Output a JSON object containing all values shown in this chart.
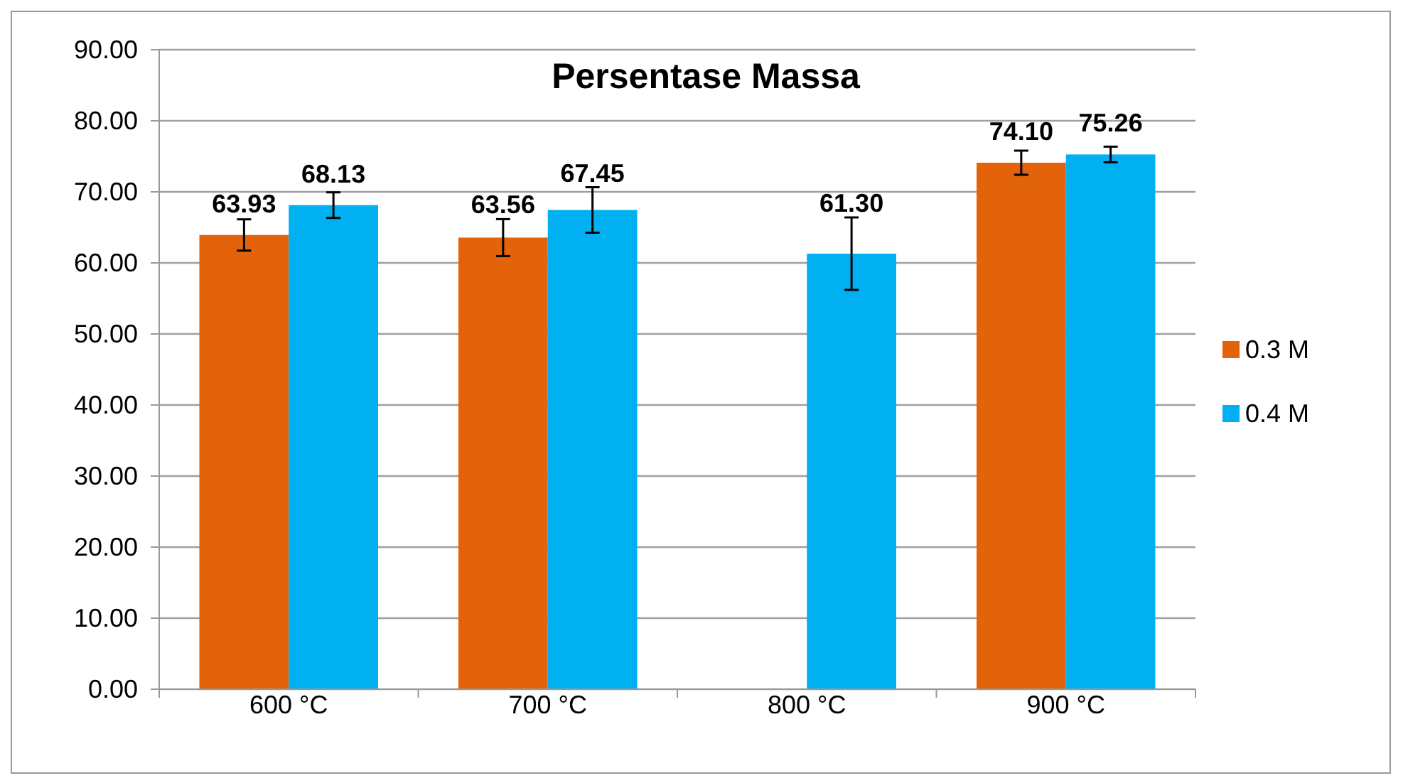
{
  "chart_data": {
    "type": "bar",
    "title": "Persentase Massa",
    "categories": [
      "600 °C",
      "700 °C",
      "800 °C",
      "900 °C"
    ],
    "series": [
      {
        "name": "0.3 M",
        "color": "#e26309",
        "values": [
          63.93,
          63.56,
          null,
          74.1
        ],
        "errors": [
          2.2,
          2.6,
          null,
          1.7
        ]
      },
      {
        "name": "0.4 M",
        "color": "#00b0f0",
        "values": [
          68.13,
          67.45,
          61.3,
          75.26
        ],
        "errors": [
          1.8,
          3.2,
          5.1,
          1.1
        ]
      }
    ],
    "value_labels": [
      [
        "63.93",
        "63.56",
        null,
        "74.10"
      ],
      [
        "68.13",
        "67.45",
        "61.30",
        "75.26"
      ]
    ],
    "ylim": [
      0,
      90
    ],
    "yticks": [
      {
        "value": 0,
        "label": "0.00"
      },
      {
        "value": 10,
        "label": "10.00"
      },
      {
        "value": 20,
        "label": "20.00"
      },
      {
        "value": 30,
        "label": "30.00"
      },
      {
        "value": 40,
        "label": "40.00"
      },
      {
        "value": 50,
        "label": "50.00"
      },
      {
        "value": 60,
        "label": "60.00"
      },
      {
        "value": 70,
        "label": "70.00"
      },
      {
        "value": 80,
        "label": "80.00"
      },
      {
        "value": 90,
        "label": "90.00"
      }
    ],
    "grid": "y",
    "legend": "right"
  }
}
